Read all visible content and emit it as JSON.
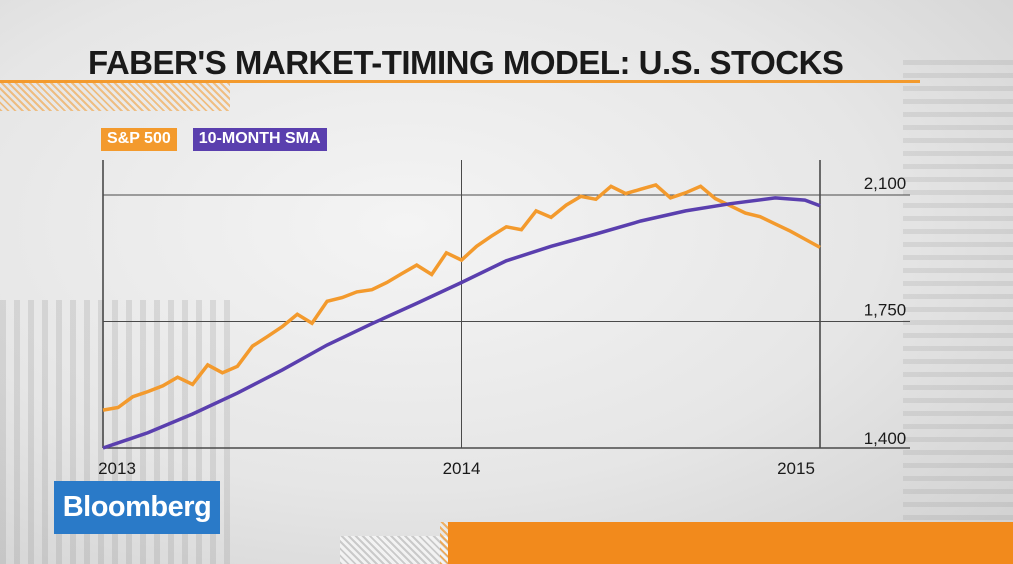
{
  "header": {
    "title": "FABER'S MARKET-TIMING MODEL: U.S. STOCKS"
  },
  "legend": {
    "sp500": "S&P 500",
    "sma": "10-MONTH SMA"
  },
  "brand": {
    "name": "Bloomberg"
  },
  "colors": {
    "sp500": "#f39a2d",
    "sma": "#5a3fae",
    "brand": "#2a7ac8",
    "accent": "#f28a1c"
  },
  "chart_data": {
    "type": "line",
    "title": "FABER'S MARKET-TIMING MODEL: U.S. STOCKS",
    "xlabel": "",
    "ylabel": "",
    "x_ticks": [
      "2013",
      "2014",
      "2015"
    ],
    "y_ticks": [
      "1,400",
      "1,750",
      "2,100"
    ],
    "ylim": [
      1400,
      2170
    ],
    "xlim": [
      2013.0,
      2015.0
    ],
    "grid": true,
    "legend_position": "top-left",
    "series": [
      {
        "name": "S&P 500",
        "x": [
          2013.0,
          2013.042,
          2013.083,
          2013.125,
          2013.167,
          2013.208,
          2013.25,
          2013.292,
          2013.333,
          2013.375,
          2013.417,
          2013.458,
          2013.5,
          2013.542,
          2013.583,
          2013.625,
          2013.667,
          2013.708,
          2013.75,
          2013.792,
          2013.833,
          2013.875,
          2013.917,
          2013.958,
          2014.0,
          2014.042,
          2014.083,
          2014.125,
          2014.167,
          2014.208,
          2014.25,
          2014.292,
          2014.333,
          2014.375,
          2014.417,
          2014.458,
          2014.5,
          2014.542,
          2014.583,
          2014.625,
          2014.667,
          2014.708,
          2014.75,
          2014.792,
          2014.833,
          2014.875,
          2014.917,
          2014.958,
          2015.0
        ],
        "values": [
          1505,
          1512,
          1542,
          1556,
          1572,
          1596,
          1576,
          1630,
          1608,
          1626,
          1682,
          1708,
          1736,
          1770,
          1745,
          1806,
          1816,
          1832,
          1838,
          1858,
          1882,
          1906,
          1880,
          1940,
          1920,
          1958,
          1986,
          2012,
          2004,
          2056,
          2038,
          2072,
          2096,
          2088,
          2124,
          2104,
          2116,
          2128,
          2092,
          2106,
          2124,
          2090,
          2070,
          2050,
          2040,
          2020,
          2000,
          1978,
          1955
        ]
      },
      {
        "name": "10-MONTH SMA",
        "x": [
          2013.0,
          2013.125,
          2013.25,
          2013.375,
          2013.5,
          2013.625,
          2013.75,
          2013.875,
          2014.0,
          2014.125,
          2014.25,
          2014.375,
          2014.5,
          2014.625,
          2014.75,
          2014.875,
          2014.958,
          2015.0
        ],
        "values": [
          1400,
          1442,
          1494,
          1552,
          1616,
          1685,
          1744,
          1800,
          1858,
          1918,
          1958,
          1992,
          2028,
          2056,
          2076,
          2092,
          2086,
          2070
        ]
      }
    ]
  }
}
